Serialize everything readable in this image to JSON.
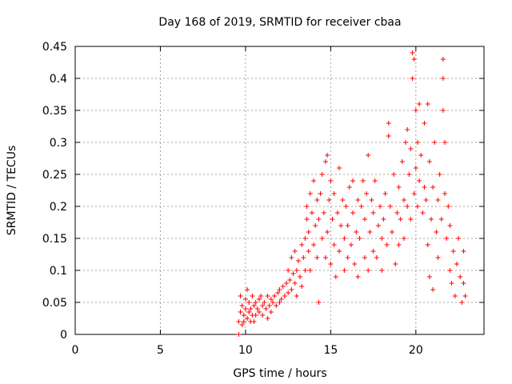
{
  "chart_data": {
    "type": "scatter",
    "title": "Day 168 of 2019, SRMTID for receiver cbaa",
    "xlabel": "GPS time / hours",
    "ylabel": "SRMTID / TECUs",
    "xlim": [
      0,
      24
    ],
    "ylim": [
      0,
      0.45
    ],
    "xticks": [
      0,
      5,
      10,
      15,
      20
    ],
    "yticks": [
      0,
      0.05,
      0.1,
      0.15,
      0.2,
      0.25,
      0.3,
      0.35,
      0.4,
      0.45
    ],
    "grid": true,
    "marker": "+",
    "color": "#ff0000",
    "series": [
      {
        "name": "SRMTID",
        "points": [
          [
            9.6,
            0.0
          ],
          [
            9.6,
            0.02
          ],
          [
            9.7,
            0.035
          ],
          [
            9.7,
            0.06
          ],
          [
            9.8,
            0.015
          ],
          [
            9.8,
            0.045
          ],
          [
            9.9,
            0.03
          ],
          [
            9.9,
            0.02
          ],
          [
            10.0,
            0.04
          ],
          [
            10.0,
            0.055
          ],
          [
            10.1,
            0.025
          ],
          [
            10.1,
            0.07
          ],
          [
            10.2,
            0.035
          ],
          [
            10.2,
            0.05
          ],
          [
            10.3,
            0.02
          ],
          [
            10.3,
            0.04
          ],
          [
            10.4,
            0.03
          ],
          [
            10.4,
            0.06
          ],
          [
            10.5,
            0.045
          ],
          [
            10.5,
            0.02
          ],
          [
            10.6,
            0.03
          ],
          [
            10.6,
            0.05
          ],
          [
            10.7,
            0.04
          ],
          [
            10.8,
            0.055
          ],
          [
            10.8,
            0.035
          ],
          [
            10.9,
            0.06
          ],
          [
            11.0,
            0.045
          ],
          [
            11.0,
            0.03
          ],
          [
            11.1,
            0.05
          ],
          [
            11.2,
            0.04
          ],
          [
            11.3,
            0.025
          ],
          [
            11.3,
            0.06
          ],
          [
            11.4,
            0.045
          ],
          [
            11.5,
            0.055
          ],
          [
            11.5,
            0.035
          ],
          [
            11.6,
            0.05
          ],
          [
            11.7,
            0.06
          ],
          [
            11.8,
            0.045
          ],
          [
            11.9,
            0.065
          ],
          [
            12.0,
            0.05
          ],
          [
            12.0,
            0.07
          ],
          [
            12.1,
            0.055
          ],
          [
            12.2,
            0.075
          ],
          [
            12.3,
            0.06
          ],
          [
            12.4,
            0.08
          ],
          [
            12.5,
            0.065
          ],
          [
            12.5,
            0.1
          ],
          [
            12.6,
            0.085
          ],
          [
            12.7,
            0.07
          ],
          [
            12.7,
            0.12
          ],
          [
            12.8,
            0.095
          ],
          [
            12.9,
            0.08
          ],
          [
            12.9,
            0.13
          ],
          [
            13.0,
            0.1
          ],
          [
            13.0,
            0.06
          ],
          [
            13.1,
            0.115
          ],
          [
            13.2,
            0.09
          ],
          [
            13.3,
            0.14
          ],
          [
            13.3,
            0.075
          ],
          [
            13.4,
            0.12
          ],
          [
            13.5,
            0.15
          ],
          [
            13.5,
            0.1
          ],
          [
            13.6,
            0.18
          ],
          [
            13.6,
            0.2
          ],
          [
            13.7,
            0.13
          ],
          [
            13.7,
            0.16
          ],
          [
            13.8,
            0.22
          ],
          [
            13.8,
            0.1
          ],
          [
            13.9,
            0.19
          ],
          [
            14.0,
            0.24
          ],
          [
            14.0,
            0.14
          ],
          [
            14.1,
            0.17
          ],
          [
            14.2,
            0.21
          ],
          [
            14.2,
            0.12
          ],
          [
            14.3,
            0.18
          ],
          [
            14.3,
            0.05
          ],
          [
            14.4,
            0.22
          ],
          [
            14.5,
            0.15
          ],
          [
            14.5,
            0.25
          ],
          [
            14.6,
            0.19
          ],
          [
            14.7,
            0.12
          ],
          [
            14.7,
            0.27
          ],
          [
            14.8,
            0.28
          ],
          [
            14.8,
            0.16
          ],
          [
            14.9,
            0.21
          ],
          [
            15.0,
            0.11
          ],
          [
            15.0,
            0.24
          ],
          [
            15.1,
            0.18
          ],
          [
            15.2,
            0.14
          ],
          [
            15.2,
            0.22
          ],
          [
            15.3,
            0.09
          ],
          [
            15.4,
            0.19
          ],
          [
            15.5,
            0.26
          ],
          [
            15.5,
            0.13
          ],
          [
            15.6,
            0.17
          ],
          [
            15.7,
            0.21
          ],
          [
            15.8,
            0.1
          ],
          [
            15.8,
            0.15
          ],
          [
            15.9,
            0.2
          ],
          [
            16.0,
            0.12
          ],
          [
            16.0,
            0.17
          ],
          [
            16.1,
            0.23
          ],
          [
            16.2,
            0.14
          ],
          [
            16.3,
            0.19
          ],
          [
            16.3,
            0.24
          ],
          [
            16.4,
            0.11
          ],
          [
            16.5,
            0.16
          ],
          [
            16.6,
            0.21
          ],
          [
            16.6,
            0.09
          ],
          [
            16.7,
            0.15
          ],
          [
            16.8,
            0.2
          ],
          [
            16.9,
            0.24
          ],
          [
            17.0,
            0.12
          ],
          [
            17.0,
            0.18
          ],
          [
            17.1,
            0.22
          ],
          [
            17.2,
            0.28
          ],
          [
            17.2,
            0.1
          ],
          [
            17.3,
            0.16
          ],
          [
            17.4,
            0.21
          ],
          [
            17.5,
            0.13
          ],
          [
            17.5,
            0.19
          ],
          [
            17.6,
            0.24
          ],
          [
            17.7,
            0.12
          ],
          [
            17.8,
            0.17
          ],
          [
            17.9,
            0.2
          ],
          [
            18.0,
            0.15
          ],
          [
            18.0,
            0.1
          ],
          [
            18.1,
            0.18
          ],
          [
            18.2,
            0.22
          ],
          [
            18.3,
            0.14
          ],
          [
            18.4,
            0.33
          ],
          [
            18.4,
            0.31
          ],
          [
            18.5,
            0.2
          ],
          [
            18.6,
            0.16
          ],
          [
            18.7,
            0.25
          ],
          [
            18.8,
            0.11
          ],
          [
            18.9,
            0.19
          ],
          [
            19.0,
            0.23
          ],
          [
            19.0,
            0.14
          ],
          [
            19.1,
            0.18
          ],
          [
            19.2,
            0.27
          ],
          [
            19.3,
            0.21
          ],
          [
            19.3,
            0.15
          ],
          [
            19.4,
            0.3
          ],
          [
            19.5,
            0.32
          ],
          [
            19.5,
            0.2
          ],
          [
            19.6,
            0.25
          ],
          [
            19.7,
            0.29
          ],
          [
            19.7,
            0.18
          ],
          [
            19.8,
            0.44
          ],
          [
            19.8,
            0.4
          ],
          [
            19.9,
            0.43
          ],
          [
            19.9,
            0.22
          ],
          [
            20.0,
            0.35
          ],
          [
            20.0,
            0.26
          ],
          [
            20.1,
            0.3
          ],
          [
            20.1,
            0.2
          ],
          [
            20.2,
            0.36
          ],
          [
            20.2,
            0.24
          ],
          [
            20.3,
            0.28
          ],
          [
            20.4,
            0.19
          ],
          [
            20.5,
            0.33
          ],
          [
            20.5,
            0.23
          ],
          [
            20.6,
            0.21
          ],
          [
            20.7,
            0.36
          ],
          [
            20.7,
            0.14
          ],
          [
            20.8,
            0.27
          ],
          [
            20.8,
            0.09
          ],
          [
            20.9,
            0.18
          ],
          [
            21.0,
            0.23
          ],
          [
            21.0,
            0.07
          ],
          [
            21.1,
            0.3
          ],
          [
            21.2,
            0.16
          ],
          [
            21.3,
            0.21
          ],
          [
            21.3,
            0.12
          ],
          [
            21.4,
            0.25
          ],
          [
            21.5,
            0.18
          ],
          [
            21.6,
            0.43
          ],
          [
            21.6,
            0.4
          ],
          [
            21.6,
            0.35
          ],
          [
            21.7,
            0.3
          ],
          [
            21.7,
            0.22
          ],
          [
            21.8,
            0.15
          ],
          [
            21.9,
            0.2
          ],
          [
            22.0,
            0.1
          ],
          [
            22.0,
            0.17
          ],
          [
            22.1,
            0.08
          ],
          [
            22.2,
            0.13
          ],
          [
            22.3,
            0.06
          ],
          [
            22.4,
            0.11
          ],
          [
            22.5,
            0.15
          ],
          [
            22.6,
            0.09
          ],
          [
            22.7,
            0.05
          ],
          [
            22.8,
            0.08
          ],
          [
            22.8,
            0.13
          ],
          [
            22.9,
            0.06
          ]
        ]
      }
    ]
  }
}
